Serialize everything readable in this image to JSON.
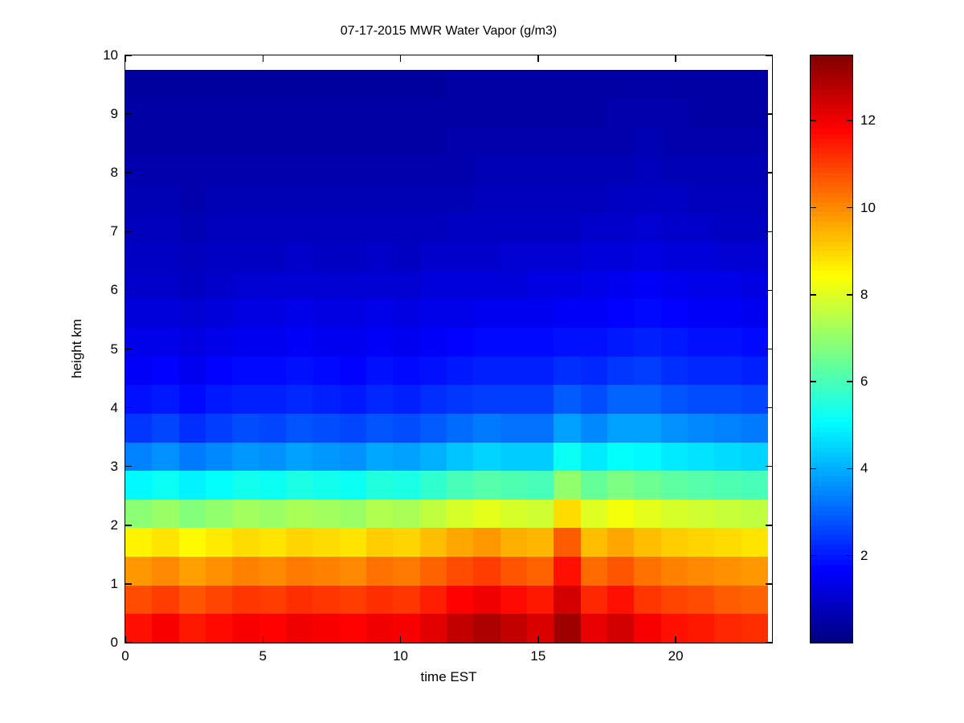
{
  "chart_data": {
    "type": "heatmap",
    "title": "07-17-2015 MWR Water Vapor (g/m3)",
    "xlabel": "time EST",
    "ylabel": "height km",
    "x_ticks": [
      0,
      5,
      10,
      15,
      20
    ],
    "y_ticks": [
      0,
      1,
      2,
      3,
      4,
      5,
      6,
      7,
      8,
      9,
      10
    ],
    "x_range": [
      0,
      23.5
    ],
    "y_range": [
      0,
      10
    ],
    "colorbar_ticks": [
      2,
      4,
      6,
      8,
      10,
      12
    ],
    "clim": [
      0,
      13.5
    ],
    "colormap": "jet",
    "hours": [
      0,
      1,
      2,
      3,
      4,
      5,
      6,
      7,
      8,
      9,
      10,
      11,
      12,
      13,
      14,
      15,
      16,
      17,
      18,
      19,
      20,
      21,
      22,
      23
    ],
    "heights_km": [
      0.25,
      0.75,
      1.25,
      1.75,
      2.25,
      2.75,
      3.25,
      3.75,
      4.25,
      4.75,
      5.25,
      5.75,
      6.25,
      6.75,
      7.25,
      7.75,
      8.25,
      8.75,
      9.25,
      9.75
    ],
    "values_note": "rows ordered bottom-to-top matching heights_km; columns are hours 0-23; units g/m3",
    "values": [
      [
        11.6,
        11.9,
        11.5,
        11.7,
        11.9,
        11.8,
        12.0,
        11.9,
        11.8,
        12.0,
        11.9,
        12.2,
        12.6,
        12.9,
        12.6,
        12.3,
        13.1,
        12.1,
        12.4,
        11.9,
        11.6,
        11.5,
        11.3,
        11.2
      ],
      [
        10.8,
        11.0,
        10.7,
        10.9,
        11.1,
        11.0,
        11.2,
        11.1,
        11.0,
        11.2,
        11.1,
        11.4,
        11.8,
        12.0,
        11.7,
        11.5,
        12.4,
        11.3,
        11.6,
        11.1,
        10.9,
        10.8,
        10.6,
        10.5
      ],
      [
        9.8,
        10.0,
        9.7,
        9.9,
        10.1,
        10.0,
        10.2,
        10.1,
        10.0,
        10.3,
        10.2,
        10.5,
        10.8,
        11.0,
        10.7,
        10.5,
        11.6,
        10.4,
        10.7,
        10.3,
        10.1,
        10.0,
        9.9,
        9.8
      ],
      [
        8.6,
        8.8,
        8.5,
        8.7,
        8.9,
        8.8,
        9.0,
        8.9,
        8.8,
        9.1,
        9.0,
        9.3,
        9.6,
        9.8,
        9.5,
        9.4,
        10.6,
        9.3,
        9.6,
        9.3,
        9.1,
        9.0,
        8.9,
        8.8
      ],
      [
        6.9,
        7.1,
        6.8,
        7.0,
        7.2,
        7.1,
        7.3,
        7.2,
        7.1,
        7.4,
        7.3,
        7.6,
        7.9,
        8.1,
        7.9,
        7.8,
        8.9,
        8.0,
        8.3,
        8.1,
        7.9,
        7.8,
        7.7,
        7.6
      ],
      [
        5.0,
        5.2,
        4.9,
        5.1,
        5.3,
        5.2,
        5.4,
        5.3,
        5.2,
        5.5,
        5.4,
        5.7,
        6.0,
        6.2,
        6.1,
        6.0,
        7.0,
        6.4,
        6.7,
        6.5,
        6.3,
        6.2,
        6.1,
        6.0
      ],
      [
        3.4,
        3.6,
        3.3,
        3.5,
        3.7,
        3.6,
        3.8,
        3.7,
        3.6,
        3.9,
        3.8,
        4.0,
        4.3,
        4.5,
        4.4,
        4.4,
        5.2,
        4.8,
        5.1,
        5.0,
        4.8,
        4.7,
        4.6,
        4.5
      ],
      [
        2.4,
        2.6,
        2.3,
        2.5,
        2.7,
        2.6,
        2.8,
        2.7,
        2.6,
        2.8,
        2.7,
        2.9,
        3.1,
        3.3,
        3.2,
        3.2,
        3.8,
        3.5,
        3.8,
        3.8,
        3.6,
        3.5,
        3.4,
        3.3
      ],
      [
        1.9,
        2.0,
        1.8,
        2.0,
        2.1,
        2.1,
        2.2,
        2.1,
        2.0,
        2.2,
        2.1,
        2.3,
        2.4,
        2.5,
        2.5,
        2.5,
        2.9,
        2.7,
        3.0,
        3.0,
        2.8,
        2.7,
        2.7,
        2.6
      ],
      [
        1.6,
        1.7,
        1.5,
        1.7,
        1.8,
        1.8,
        1.9,
        1.8,
        1.7,
        1.9,
        1.8,
        1.9,
        2.0,
        2.1,
        2.1,
        2.1,
        2.3,
        2.2,
        2.4,
        2.5,
        2.3,
        2.2,
        2.2,
        2.1
      ],
      [
        1.4,
        1.4,
        1.3,
        1.4,
        1.5,
        1.5,
        1.6,
        1.5,
        1.5,
        1.6,
        1.5,
        1.6,
        1.7,
        1.8,
        1.8,
        1.8,
        1.9,
        1.9,
        2.0,
        2.1,
        2.0,
        1.9,
        1.9,
        1.8
      ],
      [
        1.2,
        1.2,
        1.1,
        1.2,
        1.3,
        1.3,
        1.4,
        1.3,
        1.3,
        1.4,
        1.3,
        1.4,
        1.4,
        1.5,
        1.5,
        1.5,
        1.6,
        1.6,
        1.7,
        1.8,
        1.7,
        1.6,
        1.6,
        1.5
      ],
      [
        1.0,
        1.0,
        0.9,
        1.0,
        1.1,
        1.1,
        1.1,
        1.1,
        1.1,
        1.1,
        1.1,
        1.2,
        1.2,
        1.2,
        1.2,
        1.3,
        1.3,
        1.4,
        1.5,
        1.6,
        1.5,
        1.4,
        1.4,
        1.3
      ],
      [
        0.9,
        0.9,
        0.8,
        0.9,
        0.9,
        0.9,
        1.0,
        0.9,
        0.9,
        1.0,
        0.9,
        1.0,
        1.0,
        1.0,
        1.1,
        1.1,
        1.1,
        1.2,
        1.2,
        1.3,
        1.2,
        1.2,
        1.1,
        1.1
      ],
      [
        0.8,
        0.8,
        0.7,
        0.8,
        0.8,
        0.8,
        0.8,
        0.8,
        0.8,
        0.8,
        0.8,
        0.8,
        0.9,
        0.9,
        0.9,
        0.9,
        0.9,
        1.0,
        1.0,
        1.1,
        1.0,
        1.0,
        0.9,
        0.9
      ],
      [
        0.7,
        0.7,
        0.6,
        0.7,
        0.7,
        0.7,
        0.7,
        0.7,
        0.7,
        0.7,
        0.7,
        0.7,
        0.7,
        0.8,
        0.8,
        0.8,
        0.8,
        0.8,
        0.9,
        0.9,
        0.9,
        0.8,
        0.8,
        0.8
      ],
      [
        0.6,
        0.6,
        0.6,
        0.6,
        0.6,
        0.6,
        0.6,
        0.6,
        0.6,
        0.6,
        0.6,
        0.6,
        0.6,
        0.7,
        0.7,
        0.7,
        0.7,
        0.7,
        0.7,
        0.8,
        0.7,
        0.7,
        0.7,
        0.7
      ],
      [
        0.5,
        0.5,
        0.5,
        0.5,
        0.5,
        0.5,
        0.5,
        0.5,
        0.5,
        0.5,
        0.5,
        0.5,
        0.6,
        0.6,
        0.6,
        0.6,
        0.6,
        0.6,
        0.6,
        0.7,
        0.6,
        0.6,
        0.6,
        0.6
      ],
      [
        0.5,
        0.5,
        0.5,
        0.5,
        0.5,
        0.5,
        0.5,
        0.5,
        0.5,
        0.5,
        0.5,
        0.5,
        0.5,
        0.5,
        0.5,
        0.5,
        0.5,
        0.5,
        0.6,
        0.6,
        0.6,
        0.5,
        0.5,
        0.5
      ],
      [
        0.4,
        0.4,
        0.4,
        0.4,
        0.4,
        0.4,
        0.4,
        0.4,
        0.4,
        0.4,
        0.4,
        0.4,
        0.5,
        0.5,
        0.5,
        0.5,
        0.5,
        0.5,
        0.5,
        0.5,
        0.5,
        0.5,
        0.5,
        0.5
      ]
    ]
  }
}
